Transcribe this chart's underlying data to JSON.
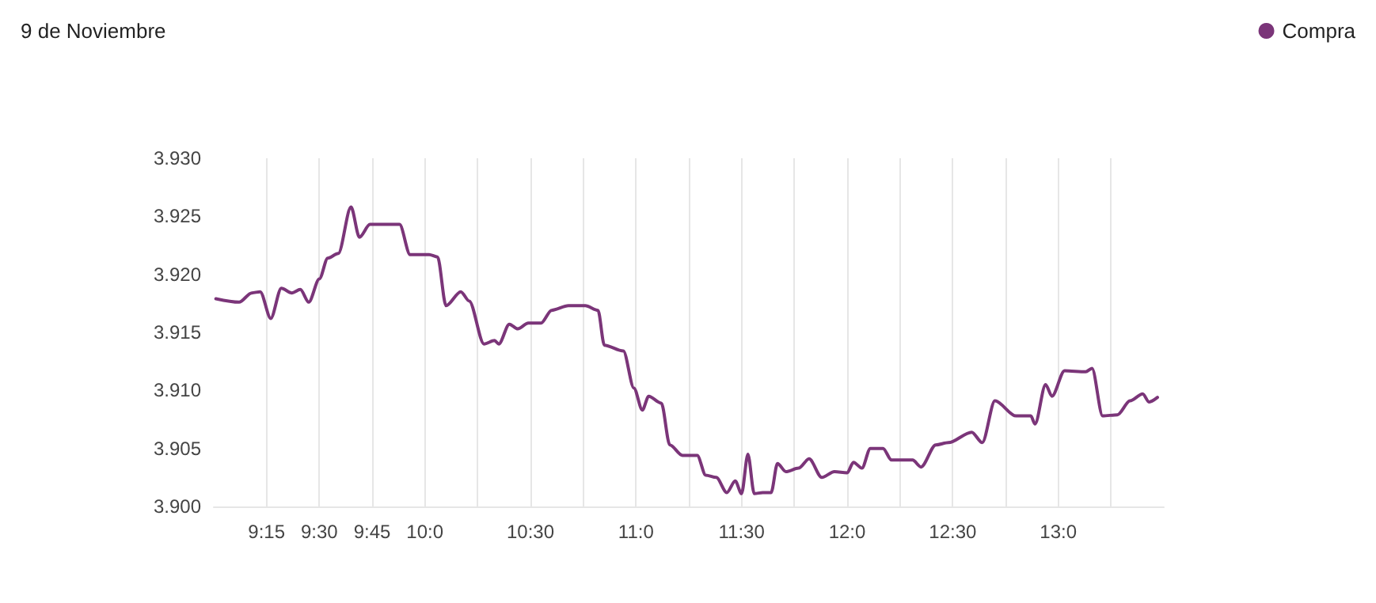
{
  "chart_data": {
    "type": "line",
    "title": "9 de Noviembre",
    "x": [
      9.01,
      9.12,
      9.18,
      9.22,
      9.27,
      9.32,
      9.37,
      9.41,
      9.45,
      9.5,
      9.54,
      9.59,
      9.65,
      9.69,
      9.74,
      9.88,
      9.93,
      10.02,
      10.06,
      10.1,
      10.17,
      10.21,
      10.28,
      10.33,
      10.35,
      10.4,
      10.44,
      10.49,
      10.55,
      10.6,
      10.68,
      10.76,
      10.82,
      10.85,
      10.94,
      10.99,
      11.03,
      11.06,
      11.12,
      11.16,
      11.22,
      11.29,
      11.33,
      11.38,
      11.43,
      11.47,
      11.5,
      11.53,
      11.56,
      11.6,
      11.64,
      11.67,
      11.71,
      11.77,
      11.82,
      11.88,
      11.94,
      12.0,
      12.03,
      12.07,
      12.11,
      12.17,
      12.21,
      12.31,
      12.35,
      12.42,
      12.48,
      12.59,
      12.64,
      12.7,
      12.8,
      12.87,
      12.89,
      12.94,
      12.97,
      13.03,
      13.13,
      13.16,
      13.21,
      13.28,
      13.34,
      13.4,
      13.43,
      13.47
    ],
    "series": [
      {
        "name": "Compra",
        "color": "#7b3579",
        "values": [
          3.9179,
          3.9176,
          3.9184,
          3.9185,
          3.9162,
          3.9188,
          3.9184,
          3.9187,
          3.9176,
          3.9196,
          3.9214,
          3.9218,
          3.9258,
          3.9232,
          3.9243,
          3.9243,
          3.9217,
          3.9217,
          3.9215,
          3.9173,
          3.9185,
          3.9177,
          3.914,
          3.9143,
          3.914,
          3.9157,
          3.9153,
          3.9158,
          3.9158,
          3.9169,
          3.9173,
          3.9173,
          3.9169,
          3.9139,
          3.9134,
          3.9102,
          3.9083,
          3.9095,
          3.9089,
          3.9053,
          3.9044,
          3.9044,
          3.9027,
          3.9025,
          3.9012,
          3.9022,
          3.9011,
          3.9045,
          3.9011,
          3.9012,
          3.9012,
          3.9037,
          3.903,
          3.9033,
          3.9041,
          3.9025,
          3.903,
          3.9029,
          3.9038,
          3.9033,
          3.905,
          3.905,
          3.904,
          3.904,
          3.9034,
          3.9053,
          3.9055,
          3.9064,
          3.9055,
          3.9091,
          3.9078,
          3.9078,
          3.9071,
          3.9105,
          3.9095,
          3.9117,
          3.9116,
          3.9119,
          3.9078,
          3.9079,
          3.9091,
          3.9097,
          3.909,
          3.9094
        ]
      }
    ],
    "xlim": [
      9.0,
      13.5
    ],
    "xticks": [
      {
        "value": 9.25,
        "label": "9:15"
      },
      {
        "value": 9.5,
        "label": "9:30"
      },
      {
        "value": 9.75,
        "label": "9:45"
      },
      {
        "value": 10,
        "label": "10:0"
      },
      {
        "value": 10.25,
        "label": null
      },
      {
        "value": 10.5,
        "label": "10:30"
      },
      {
        "value": 10.75,
        "label": null
      },
      {
        "value": 11,
        "label": "11:0"
      },
      {
        "value": 11.25,
        "label": null
      },
      {
        "value": 11.5,
        "label": "11:30"
      },
      {
        "value": 11.75,
        "label": null
      },
      {
        "value": 12,
        "label": "12:0"
      },
      {
        "value": 12.25,
        "label": null
      },
      {
        "value": 12.5,
        "label": "12:30"
      },
      {
        "value": 12.75,
        "label": null
      },
      {
        "value": 13,
        "label": "13:0"
      },
      {
        "value": 13.25,
        "label": null
      }
    ],
    "ylim": [
      3.9,
      3.93
    ],
    "yticks": [
      {
        "value": 3.9,
        "label": "3.900"
      },
      {
        "value": 3.905,
        "label": "3.905"
      },
      {
        "value": 3.91,
        "label": "3.910"
      },
      {
        "value": 3.915,
        "label": "3.915"
      },
      {
        "value": 3.92,
        "label": "3.920"
      },
      {
        "value": 3.925,
        "label": "3.925"
      },
      {
        "value": 3.93,
        "label": "3.930"
      }
    ],
    "grid": "x",
    "legend": "top right",
    "marker": "none",
    "line_style": "solid"
  }
}
